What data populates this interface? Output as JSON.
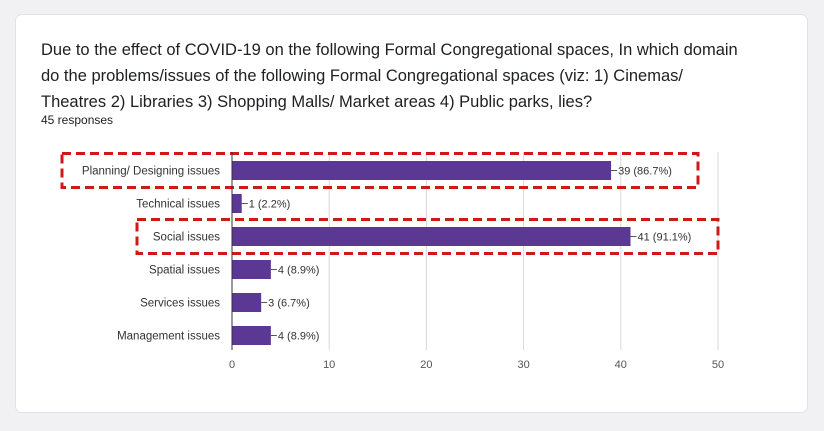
{
  "question": "Due to the effect of COVID-19 on the following Formal Congregational spaces, In which domain do the problems/issues of the following Formal Congregational spaces (viz: 1) Cinemas/ Theatres 2) Libraries 3) Shopping Malls/ Market areas 4) Public parks, lies?",
  "responses": "45 responses",
  "colors": {
    "bar": "#5b3894",
    "highlight": "#d01818",
    "axis": "#333333",
    "grid": "#d9d9d9"
  },
  "chart_data": {
    "type": "bar",
    "orientation": "horizontal",
    "categories": [
      "Planning/ Designing issues",
      "Technical issues",
      "Social issues",
      "Spatial issues",
      "Services issues",
      "Management issues"
    ],
    "values": [
      39,
      1,
      41,
      4,
      3,
      4
    ],
    "value_labels": [
      "39 (86.7%)",
      "1 (2.2%)",
      "41 (91.1%)",
      "4 (8.9%)",
      "3 (6.7%)",
      "4 (8.9%)"
    ],
    "xticks": [
      0,
      10,
      20,
      30,
      40,
      50
    ],
    "xlim": [
      0,
      50
    ],
    "highlighted_categories": [
      "Planning/ Designing issues",
      "Social issues"
    ],
    "grid": true
  }
}
